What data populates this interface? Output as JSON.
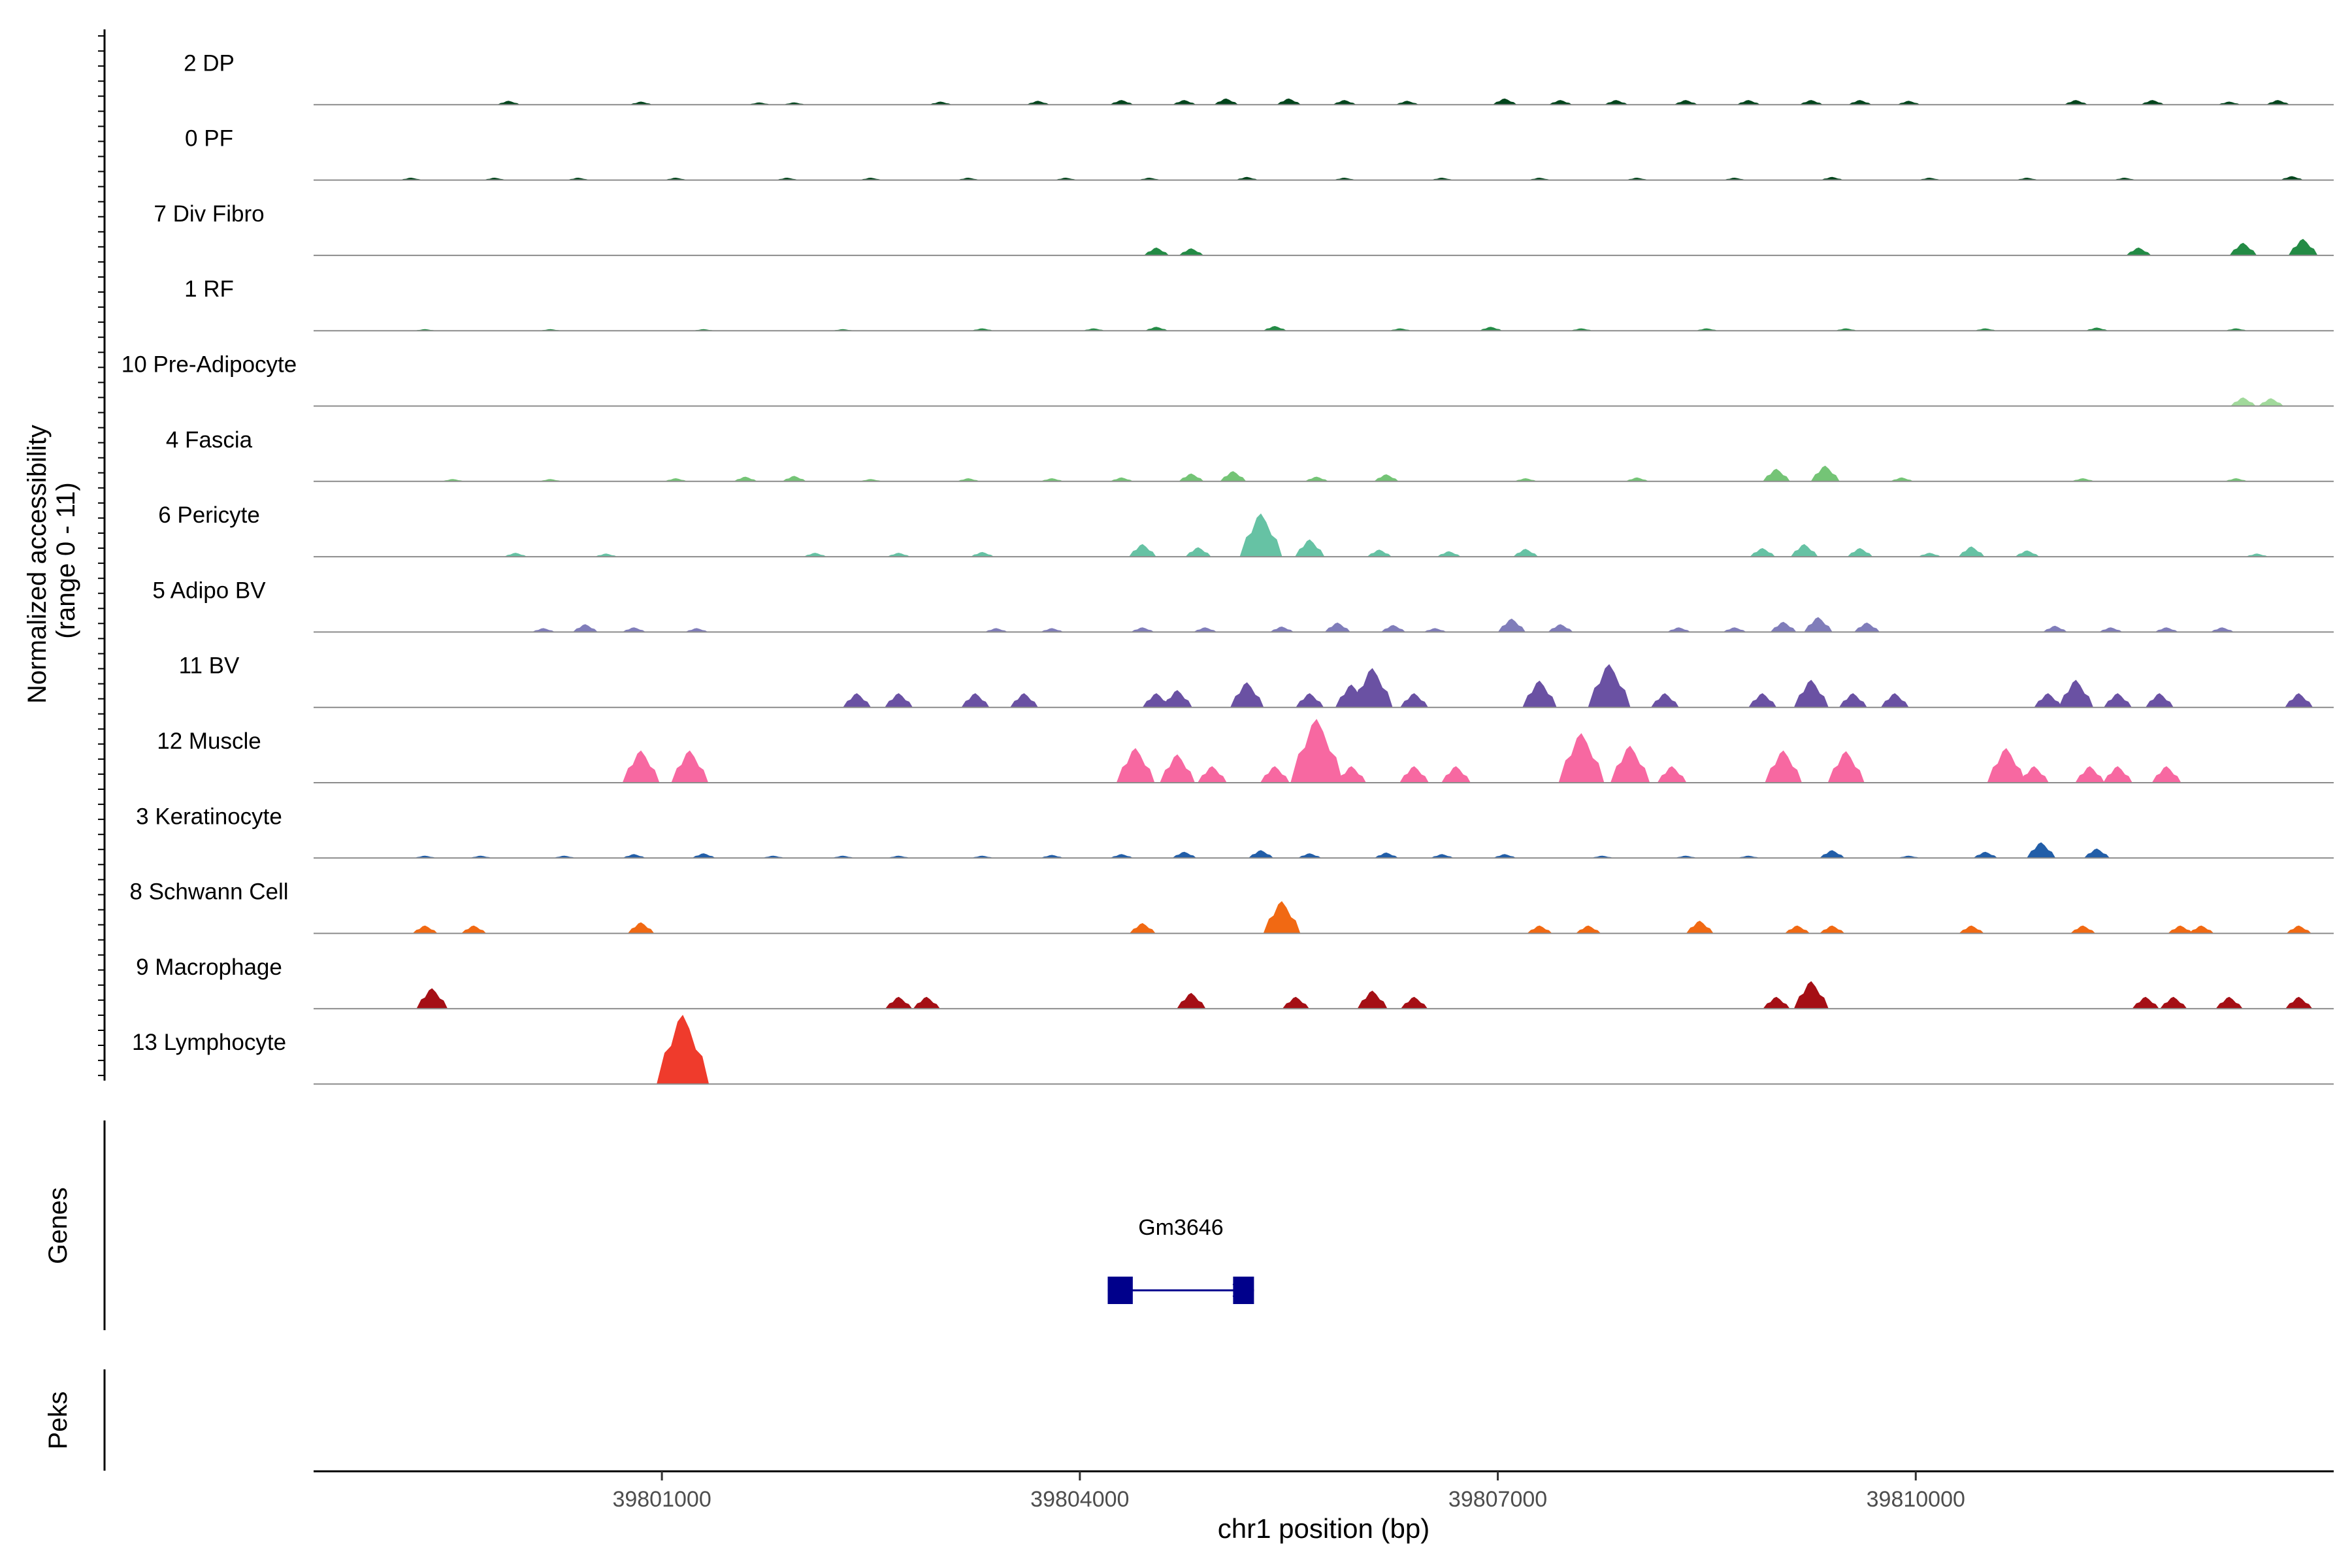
{
  "chart_data": {
    "type": "area",
    "title": "",
    "ylabel_line1": "Normalized accessibility",
    "ylabel_line2": "(range 0 - 11)",
    "xlabel": "chr1 position (bp)",
    "xlim": [
      39798500,
      39813000
    ],
    "ylim": [
      0,
      11
    ],
    "xticks": [
      39801000,
      39804000,
      39807000,
      39810000
    ],
    "xtick_labels": [
      "39801000",
      "39804000",
      "39807000",
      "39810000"
    ],
    "genes_label": "Genes",
    "peaks_label": "Peks",
    "gene": {
      "name": "Gm3646",
      "start": 39804200,
      "end": 39805250,
      "exons": [
        [
          39804200,
          39804380
        ],
        [
          39805100,
          39805250
        ]
      ],
      "color": "#00008B"
    },
    "tracks": [
      {
        "name": "2 DP",
        "color": "#00441B",
        "peaks": [
          [
            39799900,
            0.5
          ],
          [
            39800850,
            0.4
          ],
          [
            39801700,
            0.3
          ],
          [
            39801950,
            0.3
          ],
          [
            39803000,
            0.4
          ],
          [
            39803700,
            0.5
          ],
          [
            39804300,
            0.6
          ],
          [
            39804750,
            0.6
          ],
          [
            39805050,
            0.8
          ],
          [
            39805500,
            0.8
          ],
          [
            39805900,
            0.6
          ],
          [
            39806350,
            0.5
          ],
          [
            39807050,
            0.8
          ],
          [
            39807450,
            0.6
          ],
          [
            39807850,
            0.6
          ],
          [
            39808350,
            0.6
          ],
          [
            39808800,
            0.6
          ],
          [
            39809250,
            0.6
          ],
          [
            39809600,
            0.6
          ],
          [
            39809950,
            0.5
          ],
          [
            39811150,
            0.6
          ],
          [
            39811700,
            0.6
          ],
          [
            39812250,
            0.4
          ],
          [
            39812600,
            0.6
          ]
        ]
      },
      {
        "name": "0 PF",
        "color": "#00441B",
        "peaks": [
          [
            39799200,
            0.3
          ],
          [
            39799800,
            0.3
          ],
          [
            39800400,
            0.3
          ],
          [
            39801100,
            0.3
          ],
          [
            39801900,
            0.3
          ],
          [
            39802500,
            0.3
          ],
          [
            39803200,
            0.3
          ],
          [
            39803900,
            0.3
          ],
          [
            39804500,
            0.3
          ],
          [
            39805200,
            0.4
          ],
          [
            39805900,
            0.3
          ],
          [
            39806600,
            0.3
          ],
          [
            39807300,
            0.3
          ],
          [
            39808000,
            0.3
          ],
          [
            39808700,
            0.3
          ],
          [
            39809400,
            0.4
          ],
          [
            39810100,
            0.3
          ],
          [
            39810800,
            0.3
          ],
          [
            39811500,
            0.3
          ],
          [
            39812700,
            0.5
          ]
        ]
      },
      {
        "name": "7 Div Fibro",
        "color": "#238B45",
        "peaks": [
          [
            39804550,
            1.0
          ],
          [
            39804800,
            0.9
          ],
          [
            39811600,
            1.0
          ],
          [
            39812350,
            1.6
          ],
          [
            39812780,
            2.1
          ]
        ]
      },
      {
        "name": "1 RF",
        "color": "#238B45",
        "peaks": [
          [
            39799300,
            0.2
          ],
          [
            39800200,
            0.2
          ],
          [
            39801300,
            0.2
          ],
          [
            39802300,
            0.2
          ],
          [
            39803300,
            0.3
          ],
          [
            39804100,
            0.3
          ],
          [
            39804550,
            0.5
          ],
          [
            39805400,
            0.6
          ],
          [
            39806300,
            0.3
          ],
          [
            39806950,
            0.5
          ],
          [
            39807600,
            0.3
          ],
          [
            39808500,
            0.3
          ],
          [
            39809500,
            0.3
          ],
          [
            39810500,
            0.3
          ],
          [
            39811300,
            0.4
          ],
          [
            39812300,
            0.3
          ]
        ]
      },
      {
        "name": "10 Pre-Adipocyte",
        "color": "#A1D99B",
        "peaks": [
          [
            39812350,
            1.1
          ],
          [
            39812550,
            1.0
          ]
        ]
      },
      {
        "name": "4 Fascia",
        "color": "#74C476",
        "peaks": [
          [
            39799500,
            0.3
          ],
          [
            39800200,
            0.3
          ],
          [
            39801100,
            0.4
          ],
          [
            39801600,
            0.6
          ],
          [
            39801950,
            0.7
          ],
          [
            39802500,
            0.3
          ],
          [
            39803200,
            0.4
          ],
          [
            39803800,
            0.4
          ],
          [
            39804300,
            0.5
          ],
          [
            39804800,
            1.0
          ],
          [
            39805100,
            1.3
          ],
          [
            39805700,
            0.6
          ],
          [
            39806200,
            0.9
          ],
          [
            39807200,
            0.4
          ],
          [
            39808000,
            0.5
          ],
          [
            39809000,
            1.6
          ],
          [
            39809350,
            2.0
          ],
          [
            39809900,
            0.5
          ],
          [
            39811200,
            0.4
          ],
          [
            39812300,
            0.4
          ]
        ]
      },
      {
        "name": "6 Pericyte",
        "color": "#66C2A4",
        "peaks": [
          [
            39799950,
            0.5
          ],
          [
            39800600,
            0.4
          ],
          [
            39802100,
            0.5
          ],
          [
            39802700,
            0.5
          ],
          [
            39803300,
            0.6
          ],
          [
            39804450,
            1.6
          ],
          [
            39804850,
            1.2
          ],
          [
            39805300,
            5.5
          ],
          [
            39805650,
            2.2
          ],
          [
            39806150,
            0.9
          ],
          [
            39806650,
            0.7
          ],
          [
            39807200,
            1.0
          ],
          [
            39808900,
            1.1
          ],
          [
            39809200,
            1.6
          ],
          [
            39809600,
            1.1
          ],
          [
            39810100,
            0.5
          ],
          [
            39810400,
            1.3
          ],
          [
            39810800,
            0.8
          ],
          [
            39812450,
            0.4
          ]
        ]
      },
      {
        "name": "5 Adipo BV",
        "color": "#807DBA",
        "peaks": [
          [
            39800150,
            0.5
          ],
          [
            39800450,
            1.0
          ],
          [
            39800800,
            0.6
          ],
          [
            39801250,
            0.5
          ],
          [
            39803400,
            0.5
          ],
          [
            39803800,
            0.5
          ],
          [
            39804450,
            0.6
          ],
          [
            39804900,
            0.6
          ],
          [
            39805450,
            0.7
          ],
          [
            39805850,
            1.2
          ],
          [
            39806250,
            0.9
          ],
          [
            39806550,
            0.5
          ],
          [
            39807100,
            1.7
          ],
          [
            39807450,
            1.0
          ],
          [
            39808300,
            0.6
          ],
          [
            39808700,
            0.6
          ],
          [
            39809050,
            1.3
          ],
          [
            39809300,
            1.9
          ],
          [
            39809650,
            1.2
          ],
          [
            39811000,
            0.8
          ],
          [
            39811400,
            0.6
          ],
          [
            39811800,
            0.6
          ],
          [
            39812200,
            0.6
          ]
        ]
      },
      {
        "name": "11 BV",
        "color": "#6A51A3",
        "peaks": [
          [
            39802400,
            1.8
          ],
          [
            39802700,
            1.8
          ],
          [
            39803250,
            1.8
          ],
          [
            39803600,
            1.8
          ],
          [
            39804550,
            1.8
          ],
          [
            39804700,
            2.2
          ],
          [
            39805200,
            3.2
          ],
          [
            39805650,
            1.8
          ],
          [
            39805950,
            2.9
          ],
          [
            39806100,
            5.0
          ],
          [
            39806400,
            1.8
          ],
          [
            39807300,
            3.4
          ],
          [
            39807800,
            5.5
          ],
          [
            39808200,
            1.8
          ],
          [
            39808900,
            1.8
          ],
          [
            39809250,
            3.5
          ],
          [
            39809550,
            1.8
          ],
          [
            39809850,
            1.8
          ],
          [
            39810950,
            1.8
          ],
          [
            39811150,
            3.5
          ],
          [
            39811450,
            1.8
          ],
          [
            39811750,
            1.8
          ],
          [
            39812750,
            1.8
          ]
        ]
      },
      {
        "name": "12 Muscle",
        "color": "#F768A1",
        "peaks": [
          [
            39800850,
            4.1
          ],
          [
            39801200,
            4.1
          ],
          [
            39804400,
            4.4
          ],
          [
            39804700,
            3.6
          ],
          [
            39804950,
            2.1
          ],
          [
            39805400,
            2.1
          ],
          [
            39805700,
            8.1
          ],
          [
            39805950,
            2.1
          ],
          [
            39806400,
            2.1
          ],
          [
            39806700,
            2.1
          ],
          [
            39807600,
            6.3
          ],
          [
            39807950,
            4.7
          ],
          [
            39808250,
            2.1
          ],
          [
            39809050,
            4.1
          ],
          [
            39809500,
            4.0
          ],
          [
            39810650,
            4.4
          ],
          [
            39810850,
            2.1
          ],
          [
            39811250,
            2.1
          ],
          [
            39811450,
            2.1
          ],
          [
            39811800,
            2.1
          ]
        ]
      },
      {
        "name": "3 Keratinocyte",
        "color": "#225EA8",
        "peaks": [
          [
            39799300,
            0.3
          ],
          [
            39799700,
            0.3
          ],
          [
            39800300,
            0.3
          ],
          [
            39800800,
            0.5
          ],
          [
            39801300,
            0.6
          ],
          [
            39801800,
            0.3
          ],
          [
            39802300,
            0.3
          ],
          [
            39802700,
            0.3
          ],
          [
            39803300,
            0.3
          ],
          [
            39803800,
            0.4
          ],
          [
            39804300,
            0.5
          ],
          [
            39804750,
            0.8
          ],
          [
            39805300,
            1.0
          ],
          [
            39805650,
            0.6
          ],
          [
            39806200,
            0.7
          ],
          [
            39806600,
            0.5
          ],
          [
            39807050,
            0.5
          ],
          [
            39807750,
            0.3
          ],
          [
            39808350,
            0.3
          ],
          [
            39808800,
            0.3
          ],
          [
            39809400,
            1.0
          ],
          [
            39809950,
            0.3
          ],
          [
            39810500,
            0.8
          ],
          [
            39810900,
            2.0
          ],
          [
            39811300,
            1.2
          ]
        ]
      },
      {
        "name": "8 Schwann Cell",
        "color": "#F16913",
        "peaks": [
          [
            39799300,
            1.0
          ],
          [
            39799650,
            1.0
          ],
          [
            39800850,
            1.4
          ],
          [
            39804450,
            1.3
          ],
          [
            39805450,
            4.1
          ],
          [
            39807300,
            1.0
          ],
          [
            39807650,
            1.0
          ],
          [
            39808450,
            1.6
          ],
          [
            39809150,
            1.0
          ],
          [
            39809400,
            1.0
          ],
          [
            39810400,
            1.0
          ],
          [
            39811200,
            1.0
          ],
          [
            39811900,
            1.0
          ],
          [
            39812050,
            1.0
          ],
          [
            39812750,
            1.0
          ]
        ]
      },
      {
        "name": "9 Macrophage",
        "color": "#A50F15",
        "peaks": [
          [
            39799350,
            2.6
          ],
          [
            39802700,
            1.5
          ],
          [
            39802900,
            1.5
          ],
          [
            39804800,
            2.0
          ],
          [
            39805550,
            1.5
          ],
          [
            39806100,
            2.3
          ],
          [
            39806400,
            1.5
          ],
          [
            39809000,
            1.5
          ],
          [
            39809250,
            3.5
          ],
          [
            39811650,
            1.5
          ],
          [
            39811850,
            1.5
          ],
          [
            39812250,
            1.5
          ],
          [
            39812750,
            1.5
          ]
        ]
      },
      {
        "name": "13 Lymphocyte",
        "color": "#EF3B2C",
        "peaks": [
          [
            39801150,
            9.5
          ]
        ]
      }
    ]
  }
}
